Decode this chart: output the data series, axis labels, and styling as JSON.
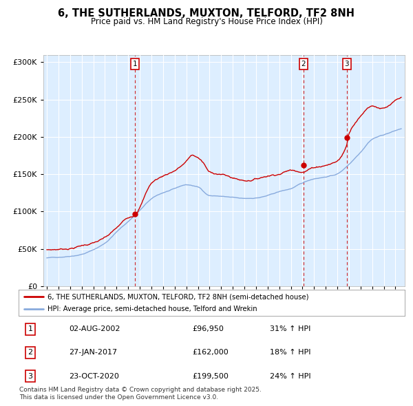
{
  "title": "6, THE SUTHERLANDS, MUXTON, TELFORD, TF2 8NH",
  "subtitle": "Price paid vs. HM Land Registry's House Price Index (HPI)",
  "title_fontsize": 10.5,
  "subtitle_fontsize": 8.5,
  "bg_color": "#ddeeff",
  "fig_bg_color": "#ffffff",
  "red_line_color": "#cc0000",
  "blue_line_color": "#88aadd",
  "dashed_line_color": "#cc0000",
  "legend_red": "6, THE SUTHERLANDS, MUXTON, TELFORD, TF2 8NH (semi-detached house)",
  "legend_blue": "HPI: Average price, semi-detached house, Telford and Wrekin",
  "footer": "Contains HM Land Registry data © Crown copyright and database right 2025.\nThis data is licensed under the Open Government Licence v3.0.",
  "xlim_start": 1994.7,
  "xlim_end": 2025.8,
  "ylim_bottom": 0,
  "ylim_top": 310000,
  "yticks": [
    0,
    50000,
    100000,
    150000,
    200000,
    250000,
    300000
  ],
  "ytick_labels": [
    "£0",
    "£50K",
    "£100K",
    "£150K",
    "£200K",
    "£250K",
    "£300K"
  ],
  "xticks": [
    1995,
    1996,
    1997,
    1998,
    1999,
    2000,
    2001,
    2002,
    2003,
    2004,
    2005,
    2006,
    2007,
    2008,
    2009,
    2010,
    2011,
    2012,
    2013,
    2014,
    2015,
    2016,
    2017,
    2018,
    2019,
    2020,
    2021,
    2022,
    2023,
    2024,
    2025
  ],
  "sale_years": [
    2002.58,
    2017.07,
    2020.8
  ],
  "sale_values": [
    96950,
    162000,
    199500
  ],
  "ann_labels": [
    "1",
    "2",
    "3"
  ],
  "ann_dates": [
    "02-AUG-2002",
    "27-JAN-2017",
    "23-OCT-2020"
  ],
  "ann_prices": [
    "£96,950",
    "£162,000",
    "£199,500"
  ],
  "ann_pcts": [
    "31% ↑ HPI",
    "18% ↑ HPI",
    "24% ↑ HPI"
  ]
}
